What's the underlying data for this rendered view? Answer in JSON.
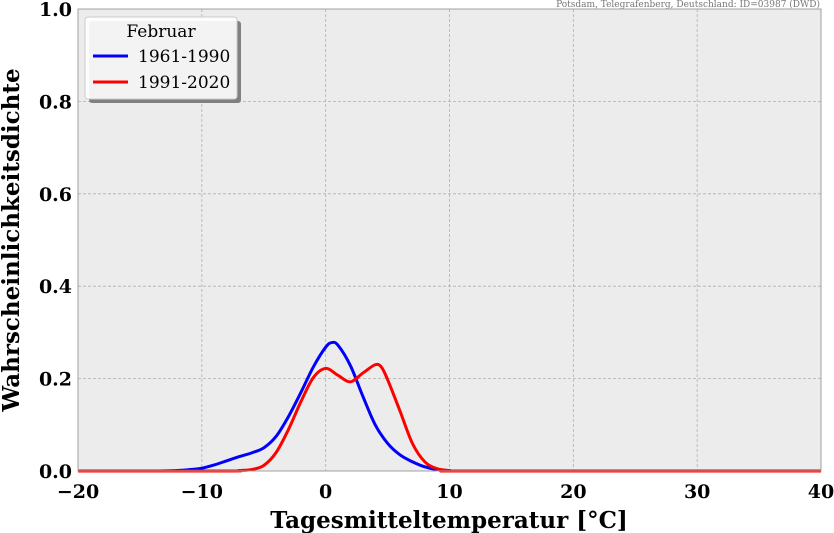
{
  "chart_data": {
    "type": "line",
    "source_note": "Potsdam, Telegrafenberg, Deutschland: ID=03987 (DWD)",
    "xlabel": "Tagesmitteltemperatur [°C]",
    "ylabel": "Wahrscheinlichkeitsdichte",
    "xlim": [
      -20,
      40
    ],
    "ylim": [
      0,
      1.0
    ],
    "xticks": [
      -20,
      -10,
      0,
      10,
      20,
      30,
      40
    ],
    "yticks": [
      0.0,
      0.2,
      0.4,
      0.6,
      0.8,
      1.0
    ],
    "xtick_labels": [
      "−20",
      "−10",
      "0",
      "10",
      "20",
      "30",
      "40"
    ],
    "ytick_labels": [
      "0.0",
      "0.2",
      "0.4",
      "0.6",
      "0.8",
      "1.0"
    ],
    "grid": true,
    "legend": {
      "title": "Februar",
      "placement": "top-left"
    },
    "colors": {
      "background": "#ececec",
      "grid": "#b0b0b0"
    },
    "series": [
      {
        "name": "1961-1990",
        "color": "#0000ff",
        "x": [
          -20,
          -14,
          -12,
          -11,
          -10,
          -9,
          -8,
          -7,
          -6,
          -5,
          -4,
          -3,
          -2,
          -1,
          0,
          0.5,
          1,
          2,
          3,
          4,
          5,
          6,
          7,
          8,
          9,
          10,
          12,
          40
        ],
        "y": [
          0,
          0,
          0.001,
          0.003,
          0.006,
          0.013,
          0.022,
          0.031,
          0.039,
          0.05,
          0.075,
          0.118,
          0.17,
          0.225,
          0.268,
          0.278,
          0.272,
          0.228,
          0.162,
          0.1,
          0.06,
          0.035,
          0.02,
          0.009,
          0.003,
          0.001,
          0,
          0
        ]
      },
      {
        "name": "1991-2020",
        "color": "#ff0000",
        "x": [
          -20,
          -8,
          -7,
          -6,
          -5,
          -4,
          -3,
          -2,
          -1,
          0,
          1,
          2,
          3,
          4,
          4.5,
          5,
          6,
          7,
          8,
          9,
          10,
          12,
          40
        ],
        "y": [
          0,
          0,
          0.001,
          0.003,
          0.012,
          0.04,
          0.09,
          0.15,
          0.202,
          0.222,
          0.207,
          0.193,
          0.212,
          0.23,
          0.225,
          0.198,
          0.13,
          0.06,
          0.02,
          0.005,
          0.001,
          0,
          0
        ]
      }
    ]
  }
}
